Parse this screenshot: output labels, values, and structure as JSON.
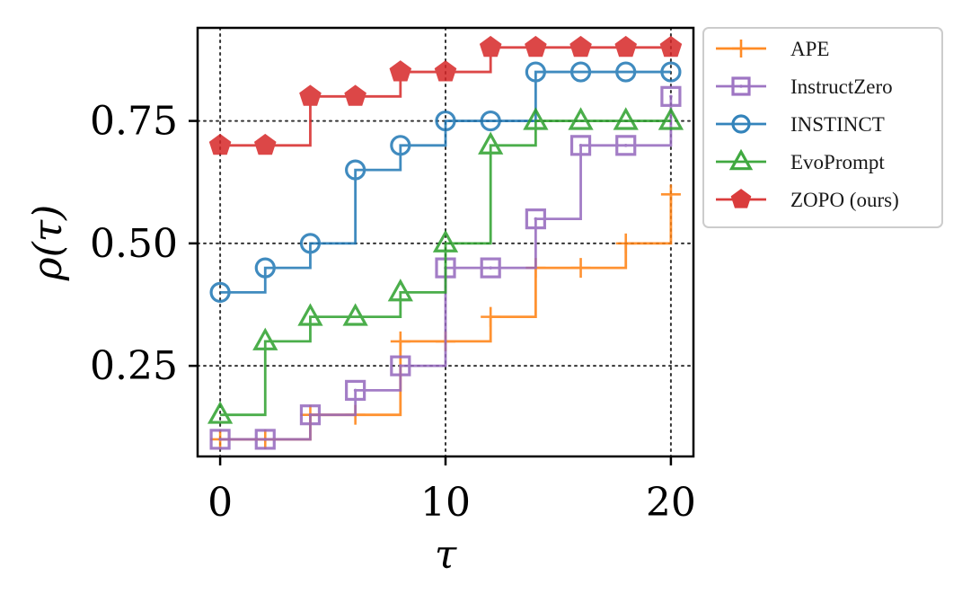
{
  "chart_data": {
    "type": "line",
    "step": "post",
    "title": "",
    "xlabel": "τ",
    "ylabel": "ρ(τ)",
    "xlim": [
      -1,
      21
    ],
    "ylim": [
      0.065,
      0.94
    ],
    "x_ticks": [
      0,
      10,
      20
    ],
    "x_tick_labels": [
      "0",
      "10",
      "20"
    ],
    "y_ticks": [
      0.25,
      0.5,
      0.75
    ],
    "y_tick_labels": [
      "0.25",
      "0.50",
      "0.75"
    ],
    "grid": "dotted",
    "legend_position": "outside-top-right",
    "series": [
      {
        "name": "APE",
        "color": "#ff7f0e",
        "marker": "plus",
        "x": [
          0,
          2,
          4,
          6,
          8,
          10,
          12,
          14,
          16,
          18,
          20
        ],
        "y": [
          0.1,
          0.1,
          0.15,
          0.15,
          0.3,
          0.3,
          0.35,
          0.45,
          0.45,
          0.5,
          0.6
        ]
      },
      {
        "name": "InstructZero",
        "color": "#9467bd",
        "marker": "square-dot",
        "x": [
          0,
          2,
          4,
          6,
          8,
          10,
          12,
          14,
          16,
          18,
          20
        ],
        "y": [
          0.1,
          0.1,
          0.15,
          0.2,
          0.25,
          0.45,
          0.45,
          0.55,
          0.7,
          0.7,
          0.8
        ]
      },
      {
        "name": "INSTINCT",
        "color": "#1f77b4",
        "marker": "circle",
        "x": [
          0,
          2,
          4,
          6,
          8,
          10,
          12,
          14,
          16,
          18,
          20
        ],
        "y": [
          0.4,
          0.45,
          0.5,
          0.65,
          0.7,
          0.75,
          0.75,
          0.85,
          0.85,
          0.85,
          0.85
        ]
      },
      {
        "name": "EvoPrompt",
        "color": "#2ca02c",
        "marker": "triangle",
        "x": [
          0,
          2,
          4,
          6,
          8,
          10,
          12,
          14,
          16,
          18,
          20
        ],
        "y": [
          0.15,
          0.3,
          0.35,
          0.35,
          0.4,
          0.5,
          0.7,
          0.75,
          0.75,
          0.75,
          0.75
        ]
      },
      {
        "name": "ZOPO (ours)",
        "color": "#d62728",
        "marker": "pentagon",
        "x": [
          0,
          2,
          4,
          6,
          8,
          10,
          12,
          14,
          16,
          18,
          20
        ],
        "y": [
          0.7,
          0.7,
          0.8,
          0.8,
          0.85,
          0.85,
          0.9,
          0.9,
          0.9,
          0.9,
          0.9
        ]
      }
    ]
  }
}
